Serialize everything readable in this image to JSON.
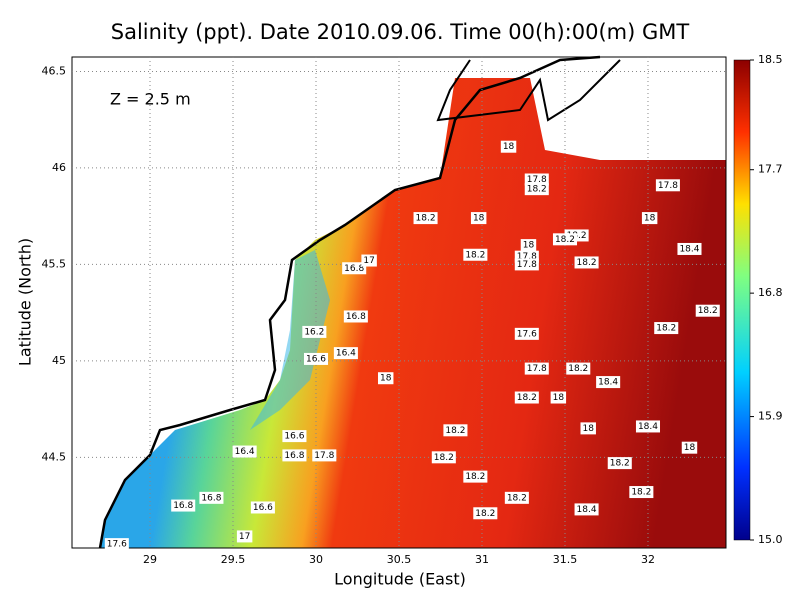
{
  "chart_data": {
    "type": "contour-map",
    "title": "Salinity (ppt). Date 2010.09.06. Time 00(h):00(m) GMT",
    "annotation": "Z = 2.5 m",
    "x_label": "Longitude (East)",
    "y_label": "Latitude (North)",
    "xlim": [
      28.53,
      32.47
    ],
    "xticks": [
      29,
      29.5,
      30,
      30.5,
      31,
      31.5,
      32
    ],
    "ylim": [
      44.03,
      46.575
    ],
    "yticks": [
      44.5,
      45,
      45.5,
      46,
      46.5
    ],
    "grid": true,
    "colorbar": {
      "lim": [
        15,
        18.5
      ],
      "ticks": [
        {
          "value": 15,
          "label": "15.0"
        },
        15.9,
        16.8,
        17.7,
        18.5
      ]
    },
    "contour_labels": [
      {
        "lon": 31.16,
        "lat": 46.11,
        "value": 18
      },
      {
        "lon": 31.33,
        "lat": 45.94,
        "value": 17.8
      },
      {
        "lon": 31.33,
        "lat": 45.89,
        "value": 18.2
      },
      {
        "lon": 32.12,
        "lat": 45.91,
        "value": 17.8
      },
      {
        "lon": 30.66,
        "lat": 45.74,
        "value": 18.2
      },
      {
        "lon": 30.98,
        "lat": 45.74,
        "value": 18
      },
      {
        "lon": 32.01,
        "lat": 45.74,
        "value": 18
      },
      {
        "lon": 31.57,
        "lat": 45.65,
        "value": 18.2
      },
      {
        "lon": 31.5,
        "lat": 45.63,
        "value": 18.2
      },
      {
        "lon": 31.28,
        "lat": 45.6,
        "value": 18
      },
      {
        "lon": 30.96,
        "lat": 45.55,
        "value": 18.2
      },
      {
        "lon": 31.27,
        "lat": 45.54,
        "value": 17.8
      },
      {
        "lon": 31.27,
        "lat": 45.5,
        "value": 17.8
      },
      {
        "lon": 31.63,
        "lat": 45.51,
        "value": 18.2
      },
      {
        "lon": 32.25,
        "lat": 45.58,
        "value": 18.4
      },
      {
        "lon": 30.23,
        "lat": 45.48,
        "value": 16.8
      },
      {
        "lon": 30.32,
        "lat": 45.52,
        "value": 17
      },
      {
        "lon": 30.24,
        "lat": 45.23,
        "value": 16.8
      },
      {
        "lon": 29.99,
        "lat": 45.15,
        "value": 16.2
      },
      {
        "lon": 30.0,
        "lat": 45.01,
        "value": 16.6
      },
      {
        "lon": 30.18,
        "lat": 45.04,
        "value": 16.4
      },
      {
        "lon": 31.27,
        "lat": 45.14,
        "value": 17.6
      },
      {
        "lon": 32.11,
        "lat": 45.17,
        "value": 18.2
      },
      {
        "lon": 32.36,
        "lat": 45.26,
        "value": 18.2
      },
      {
        "lon": 31.33,
        "lat": 44.96,
        "value": 17.8
      },
      {
        "lon": 31.58,
        "lat": 44.96,
        "value": 18.2
      },
      {
        "lon": 31.76,
        "lat": 44.89,
        "value": 18.4
      },
      {
        "lon": 30.42,
        "lat": 44.91,
        "value": 18
      },
      {
        "lon": 31.27,
        "lat": 44.81,
        "value": 18.2
      },
      {
        "lon": 31.46,
        "lat": 44.81,
        "value": 18
      },
      {
        "lon": 30.84,
        "lat": 44.64,
        "value": 18.2
      },
      {
        "lon": 31.64,
        "lat": 44.65,
        "value": 18
      },
      {
        "lon": 32.0,
        "lat": 44.66,
        "value": 18.4
      },
      {
        "lon": 32.25,
        "lat": 44.55,
        "value": 18
      },
      {
        "lon": 29.87,
        "lat": 44.61,
        "value": 16.6
      },
      {
        "lon": 29.57,
        "lat": 44.53,
        "value": 16.4
      },
      {
        "lon": 29.87,
        "lat": 44.51,
        "value": 16.8
      },
      {
        "lon": 30.05,
        "lat": 44.51,
        "value": 17.8
      },
      {
        "lon": 30.77,
        "lat": 44.5,
        "value": 18.2
      },
      {
        "lon": 31.83,
        "lat": 44.47,
        "value": 18.2
      },
      {
        "lon": 30.96,
        "lat": 44.4,
        "value": 18.2
      },
      {
        "lon": 31.96,
        "lat": 44.32,
        "value": 18.2
      },
      {
        "lon": 29.37,
        "lat": 44.29,
        "value": 16.8
      },
      {
        "lon": 29.2,
        "lat": 44.25,
        "value": 16.8
      },
      {
        "lon": 31.21,
        "lat": 44.29,
        "value": 18.2
      },
      {
        "lon": 29.68,
        "lat": 44.24,
        "value": 16.6
      },
      {
        "lon": 31.63,
        "lat": 44.23,
        "value": 18.4
      },
      {
        "lon": 31.02,
        "lat": 44.21,
        "value": 18.2
      },
      {
        "lon": 29.57,
        "lat": 44.09,
        "value": 17
      },
      {
        "lon": 28.8,
        "lat": 44.05,
        "value": 17.6
      }
    ]
  }
}
